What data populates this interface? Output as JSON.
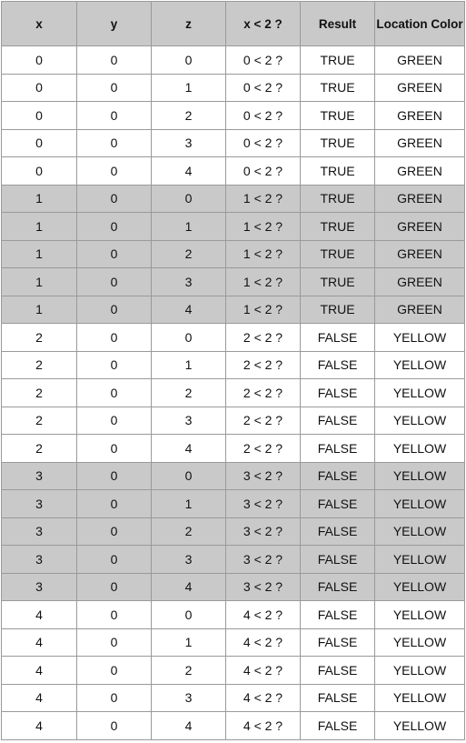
{
  "table": {
    "headers": [
      "x",
      "y",
      "z",
      "x < 2 ?",
      "Result",
      "Location Color"
    ],
    "shaded_row_color": "#c9c9c9",
    "rows": [
      {
        "shaded": false,
        "cells": [
          "0",
          "0",
          "0",
          "0 < 2 ?",
          "TRUE",
          "GREEN"
        ]
      },
      {
        "shaded": false,
        "cells": [
          "0",
          "0",
          "1",
          "0 < 2 ?",
          "TRUE",
          "GREEN"
        ]
      },
      {
        "shaded": false,
        "cells": [
          "0",
          "0",
          "2",
          "0 < 2 ?",
          "TRUE",
          "GREEN"
        ]
      },
      {
        "shaded": false,
        "cells": [
          "0",
          "0",
          "3",
          "0 < 2 ?",
          "TRUE",
          "GREEN"
        ]
      },
      {
        "shaded": false,
        "cells": [
          "0",
          "0",
          "4",
          "0 < 2 ?",
          "TRUE",
          "GREEN"
        ]
      },
      {
        "shaded": true,
        "cells": [
          "1",
          "0",
          "0",
          "1 < 2 ?",
          "TRUE",
          "GREEN"
        ]
      },
      {
        "shaded": true,
        "cells": [
          "1",
          "0",
          "1",
          "1 < 2 ?",
          "TRUE",
          "GREEN"
        ]
      },
      {
        "shaded": true,
        "cells": [
          "1",
          "0",
          "2",
          "1 < 2 ?",
          "TRUE",
          "GREEN"
        ]
      },
      {
        "shaded": true,
        "cells": [
          "1",
          "0",
          "3",
          "1 < 2 ?",
          "TRUE",
          "GREEN"
        ]
      },
      {
        "shaded": true,
        "cells": [
          "1",
          "0",
          "4",
          "1 < 2 ?",
          "TRUE",
          "GREEN"
        ]
      },
      {
        "shaded": false,
        "cells": [
          "2",
          "0",
          "0",
          "2 < 2 ?",
          "FALSE",
          "YELLOW"
        ]
      },
      {
        "shaded": false,
        "cells": [
          "2",
          "0",
          "1",
          "2 < 2 ?",
          "FALSE",
          "YELLOW"
        ]
      },
      {
        "shaded": false,
        "cells": [
          "2",
          "0",
          "2",
          "2 < 2 ?",
          "FALSE",
          "YELLOW"
        ]
      },
      {
        "shaded": false,
        "cells": [
          "2",
          "0",
          "3",
          "2 < 2 ?",
          "FALSE",
          "YELLOW"
        ]
      },
      {
        "shaded": false,
        "cells": [
          "2",
          "0",
          "4",
          "2 < 2 ?",
          "FALSE",
          "YELLOW"
        ]
      },
      {
        "shaded": true,
        "cells": [
          "3",
          "0",
          "0",
          "3 < 2 ?",
          "FALSE",
          "YELLOW"
        ]
      },
      {
        "shaded": true,
        "cells": [
          "3",
          "0",
          "1",
          "3 < 2 ?",
          "FALSE",
          "YELLOW"
        ]
      },
      {
        "shaded": true,
        "cells": [
          "3",
          "0",
          "2",
          "3 < 2 ?",
          "FALSE",
          "YELLOW"
        ]
      },
      {
        "shaded": true,
        "cells": [
          "3",
          "0",
          "3",
          "3 < 2 ?",
          "FALSE",
          "YELLOW"
        ]
      },
      {
        "shaded": true,
        "cells": [
          "3",
          "0",
          "4",
          "3 < 2 ?",
          "FALSE",
          "YELLOW"
        ]
      },
      {
        "shaded": false,
        "cells": [
          "4",
          "0",
          "0",
          "4 < 2 ?",
          "FALSE",
          "YELLOW"
        ]
      },
      {
        "shaded": false,
        "cells": [
          "4",
          "0",
          "1",
          "4 < 2 ?",
          "FALSE",
          "YELLOW"
        ]
      },
      {
        "shaded": false,
        "cells": [
          "4",
          "0",
          "2",
          "4 < 2 ?",
          "FALSE",
          "YELLOW"
        ]
      },
      {
        "shaded": false,
        "cells": [
          "4",
          "0",
          "3",
          "4 < 2 ?",
          "FALSE",
          "YELLOW"
        ]
      },
      {
        "shaded": false,
        "cells": [
          "4",
          "0",
          "4",
          "4 < 2 ?",
          "FALSE",
          "YELLOW"
        ]
      }
    ]
  }
}
